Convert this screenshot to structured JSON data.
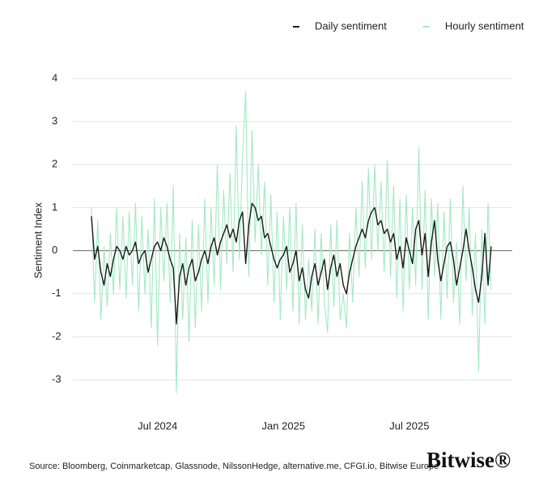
{
  "chart_data": {
    "type": "line",
    "ylabel": "Sentiment Index",
    "categories": [
      null,
      null,
      null,
      null,
      null,
      null,
      null,
      null,
      null,
      null,
      null,
      null,
      null,
      null,
      null,
      null,
      null,
      null,
      null,
      null,
      null,
      "Jul 2024",
      null,
      null,
      null,
      null,
      null,
      null,
      null,
      null,
      null,
      null,
      null,
      null,
      null,
      null,
      null,
      null,
      null,
      null,
      null,
      null,
      null,
      null,
      null,
      null,
      null,
      null,
      null,
      null,
      null,
      null,
      null,
      null,
      null,
      null,
      null,
      null,
      null,
      null,
      null,
      "Jan 2025",
      null,
      null,
      null,
      null,
      null,
      null,
      null,
      null,
      null,
      null,
      null,
      null,
      null,
      null,
      null,
      null,
      null,
      null,
      null,
      null,
      null,
      null,
      null,
      null,
      null,
      null,
      null,
      null,
      null,
      null,
      null,
      null,
      null,
      null,
      null,
      null,
      null,
      null,
      null,
      "Jul 2025",
      null,
      null,
      null,
      null,
      null,
      null,
      null,
      null,
      null,
      null,
      null,
      null,
      null,
      null,
      null,
      null,
      null,
      null,
      null,
      null,
      null,
      null,
      null,
      null,
      null,
      null
    ],
    "series": [
      {
        "name": "Daily sentiment",
        "color": "#1b1b1b",
        "values": [
          0.8,
          -0.2,
          0.1,
          -0.5,
          -0.8,
          -0.3,
          -0.6,
          -0.2,
          0.1,
          0.0,
          -0.2,
          0.1,
          -0.1,
          0.0,
          0.2,
          -0.3,
          -0.1,
          0.0,
          -0.5,
          -0.2,
          0.1,
          0.2,
          0.0,
          0.3,
          0.1,
          -0.2,
          -0.4,
          -1.7,
          -0.6,
          -0.3,
          -0.8,
          -0.4,
          -0.2,
          -0.7,
          -0.5,
          -0.2,
          0.0,
          -0.3,
          0.1,
          0.3,
          -0.1,
          0.2,
          0.4,
          0.6,
          0.3,
          0.5,
          0.2,
          0.7,
          0.9,
          -0.3,
          0.6,
          1.1,
          1.0,
          0.7,
          0.8,
          0.3,
          0.4,
          0.1,
          -0.2,
          -0.4,
          -0.2,
          -0.1,
          0.1,
          -0.5,
          -0.3,
          0.0,
          -0.7,
          -0.4,
          -0.9,
          -1.1,
          -0.6,
          -0.3,
          -0.8,
          -0.5,
          -0.2,
          -0.9,
          -0.4,
          -0.1,
          -0.6,
          -0.3,
          -0.8,
          -1.0,
          -0.5,
          -0.2,
          0.1,
          0.3,
          0.5,
          0.3,
          0.7,
          0.9,
          1.0,
          0.6,
          0.7,
          0.4,
          0.5,
          0.2,
          0.4,
          -0.2,
          0.1,
          -0.4,
          0.3,
          0.0,
          -0.3,
          0.5,
          0.7,
          -0.1,
          0.4,
          -0.6,
          0.2,
          0.7,
          -0.2,
          -0.7,
          -0.3,
          0.1,
          0.2,
          -0.2,
          -0.8,
          -0.4,
          0.0,
          0.5,
          0.0,
          -0.4,
          -0.9,
          -1.2,
          -0.6,
          0.4,
          -0.8,
          0.1
        ]
      },
      {
        "name": "Hourly sentiment",
        "color": "#a3e9c4",
        "values": [
          1.0,
          -1.2,
          0.7,
          -1.6,
          0.1,
          -1.3,
          0.4,
          -1.0,
          1.0,
          -0.9,
          0.8,
          -1.1,
          0.9,
          -0.8,
          1.1,
          -1.4,
          0.8,
          -1.0,
          0.5,
          -1.8,
          1.2,
          -2.2,
          1.0,
          -0.7,
          1.1,
          -1.2,
          1.5,
          -3.3,
          0.4,
          -1.6,
          0.3,
          -2.1,
          0.7,
          -1.8,
          0.6,
          -1.4,
          1.2,
          -1.2,
          1.0,
          -0.8,
          2.0,
          -0.9,
          1.4,
          -0.3,
          1.8,
          -0.5,
          2.9,
          -0.2,
          2.2,
          3.7,
          -0.6,
          2.8,
          0.2,
          2.0,
          -0.1,
          1.6,
          -0.8,
          1.3,
          -1.2,
          0.9,
          -1.6,
          0.8,
          -0.9,
          1.0,
          -1.4,
          1.1,
          -1.7,
          0.6,
          -1.6,
          -0.2,
          -1.4,
          0.5,
          -1.7,
          0.4,
          -1.2,
          -1.9,
          0.6,
          -1.3,
          0.7,
          -1.6,
          -1.0,
          -1.8,
          0.4,
          -1.2,
          1.0,
          -0.6,
          1.6,
          -0.4,
          1.9,
          -0.2,
          2.0,
          0.0,
          1.6,
          -0.5,
          2.1,
          -0.6,
          1.5,
          -1.1,
          1.2,
          -1.4,
          1.3,
          -0.9,
          1.0,
          -0.8,
          2.4,
          -0.9,
          1.4,
          -1.6,
          1.2,
          -0.6,
          1.1,
          -1.6,
          0.9,
          -1.1,
          1.2,
          -1.2,
          0.2,
          -1.7,
          1.5,
          -0.7,
          1.0,
          -1.5,
          0.4,
          -2.8,
          0.5,
          -1.7,
          1.1,
          -0.9
        ]
      }
    ],
    "ylim": [
      -3.6,
      4.3
    ],
    "yticks": [
      -3,
      -2,
      -1,
      0,
      1,
      2,
      3,
      4
    ],
    "grid": true,
    "legend": "top-right"
  },
  "footer": {
    "source": "Source: Bloomberg, Coinmarketcap, Glassnode, NilssonHedge, alternative.me, CFGI.io, Bitwise Europe",
    "brand": "Bitwise®"
  }
}
